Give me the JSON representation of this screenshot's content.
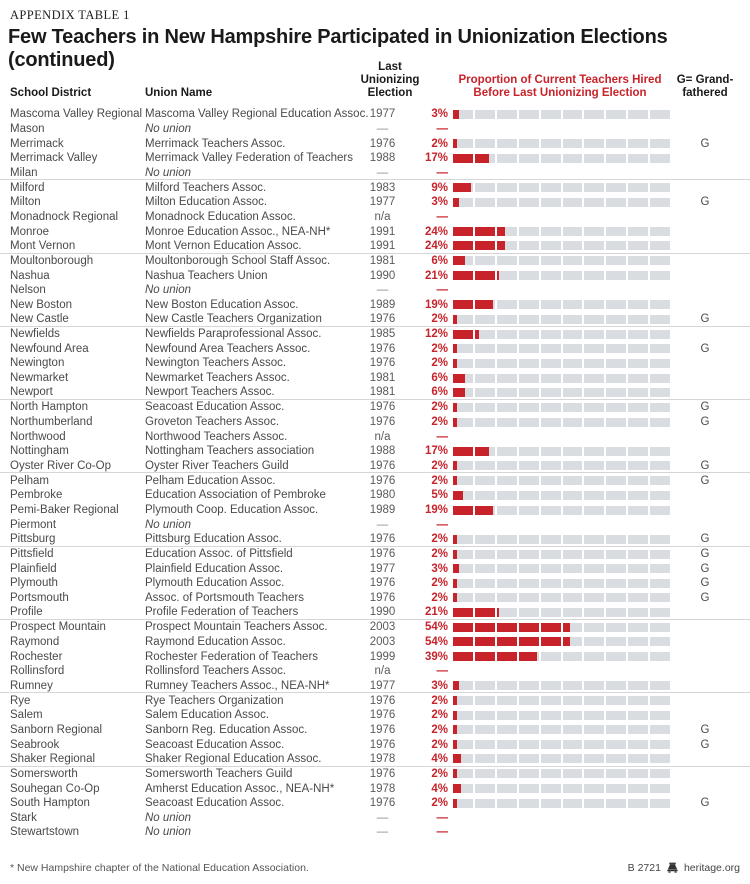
{
  "page": {
    "eyebrow": "APPENDIX TABLE 1",
    "title": "Few Teachers in New Hampshire Participated in Unionization Elections (continued)",
    "footnote": "* New Hampshire chapter of the National Education Association.",
    "footer_code": "B 2721",
    "footer_site": "heritage.org"
  },
  "columns": {
    "school_district": "School District",
    "union_name": "Union Name",
    "last_election_lines": [
      "Last",
      "Unionizing",
      "Election"
    ],
    "proportion_lines": [
      "Proportion of Current Teachers Hired",
      "Before Last Unionizing Election"
    ],
    "grandfathered_lines": [
      "G= Grand-",
      "fathered"
    ]
  },
  "colors": {
    "accent_red": "#C8232B",
    "bar_track_gray": "#D9DDE2",
    "divider_gray": "#D6D6D6",
    "body_text": "#4A4A4A"
  },
  "rows": [
    {
      "district": "Mascoma Valley Regional",
      "union": "Mascoma Valley Regional Education Assoc.",
      "no_union": false,
      "year": "1977",
      "pct": 3,
      "pct_label": "3%",
      "g": ""
    },
    {
      "district": "Mason",
      "union": "No union",
      "no_union": true,
      "year": "—",
      "pct": null,
      "pct_label": "—",
      "g": ""
    },
    {
      "district": "Merrimack",
      "union": "Merrimack Teachers Assoc.",
      "no_union": false,
      "year": "1976",
      "pct": 2,
      "pct_label": "2%",
      "g": "G"
    },
    {
      "district": "Merrimack Valley",
      "union": "Merrimack Valley Federation of Teachers",
      "no_union": false,
      "year": "1988",
      "pct": 17,
      "pct_label": "17%",
      "g": ""
    },
    {
      "district": "Milan",
      "union": "No union",
      "no_union": true,
      "year": "—",
      "pct": null,
      "pct_label": "—",
      "g": ""
    },
    {
      "district": "Milford",
      "union": "Milford Teachers Assoc.",
      "no_union": false,
      "year": "1983",
      "pct": 9,
      "pct_label": "9%",
      "g": ""
    },
    {
      "district": "Milton",
      "union": "Milton Education Assoc.",
      "no_union": false,
      "year": "1977",
      "pct": 3,
      "pct_label": "3%",
      "g": "G"
    },
    {
      "district": "Monadnock Regional",
      "union": "Monadnock Education Assoc.",
      "no_union": false,
      "year": "n/a",
      "pct": null,
      "pct_label": "—",
      "g": ""
    },
    {
      "district": "Monroe",
      "union": "Monroe Education Assoc., NEA-NH*",
      "no_union": false,
      "year": "1991",
      "pct": 24,
      "pct_label": "24%",
      "g": ""
    },
    {
      "district": "Mont Vernon",
      "union": "Mont Vernon Education Assoc.",
      "no_union": false,
      "year": "1991",
      "pct": 24,
      "pct_label": "24%",
      "g": ""
    },
    {
      "district": "Moultonborough",
      "union": "Moultonborough School Staff Assoc.",
      "no_union": false,
      "year": "1981",
      "pct": 6,
      "pct_label": "6%",
      "g": ""
    },
    {
      "district": "Nashua",
      "union": "Nashua Teachers Union",
      "no_union": false,
      "year": "1990",
      "pct": 21,
      "pct_label": "21%",
      "g": ""
    },
    {
      "district": "Nelson",
      "union": "No union",
      "no_union": true,
      "year": "—",
      "pct": null,
      "pct_label": "—",
      "g": ""
    },
    {
      "district": "New Boston",
      "union": "New Boston Education Assoc.",
      "no_union": false,
      "year": "1989",
      "pct": 19,
      "pct_label": "19%",
      "g": ""
    },
    {
      "district": "New Castle",
      "union": "New Castle Teachers Organization",
      "no_union": false,
      "year": "1976",
      "pct": 2,
      "pct_label": "2%",
      "g": "G"
    },
    {
      "district": "Newfields",
      "union": "Newfields Paraprofessional Assoc.",
      "no_union": false,
      "year": "1985",
      "pct": 12,
      "pct_label": "12%",
      "g": ""
    },
    {
      "district": "Newfound Area",
      "union": "Newfound Area Teachers Assoc.",
      "no_union": false,
      "year": "1976",
      "pct": 2,
      "pct_label": "2%",
      "g": "G"
    },
    {
      "district": "Newington",
      "union": "Newington Teachers Assoc.",
      "no_union": false,
      "year": "1976",
      "pct": 2,
      "pct_label": "2%",
      "g": ""
    },
    {
      "district": "Newmarket",
      "union": "Newmarket Teachers Assoc.",
      "no_union": false,
      "year": "1981",
      "pct": 6,
      "pct_label": "6%",
      "g": ""
    },
    {
      "district": "Newport",
      "union": "Newport Teachers Assoc.",
      "no_union": false,
      "year": "1981",
      "pct": 6,
      "pct_label": "6%",
      "g": ""
    },
    {
      "district": "North Hampton",
      "union": "Seacoast Education Assoc.",
      "no_union": false,
      "year": "1976",
      "pct": 2,
      "pct_label": "2%",
      "g": "G"
    },
    {
      "district": "Northumberland",
      "union": "Groveton Teachers Assoc.",
      "no_union": false,
      "year": "1976",
      "pct": 2,
      "pct_label": "2%",
      "g": "G"
    },
    {
      "district": "Northwood",
      "union": "Northwood Teachers Assoc.",
      "no_union": false,
      "year": "n/a",
      "pct": null,
      "pct_label": "—",
      "g": ""
    },
    {
      "district": "Nottingham",
      "union": "Nottingham Teachers association",
      "no_union": false,
      "year": "1988",
      "pct": 17,
      "pct_label": "17%",
      "g": ""
    },
    {
      "district": "Oyster River Co-Op",
      "union": "Oyster River Teachers Guild",
      "no_union": false,
      "year": "1976",
      "pct": 2,
      "pct_label": "2%",
      "g": "G"
    },
    {
      "district": "Pelham",
      "union": "Pelham Education Assoc.",
      "no_union": false,
      "year": "1976",
      "pct": 2,
      "pct_label": "2%",
      "g": "G"
    },
    {
      "district": "Pembroke",
      "union": "Education Association of Pembroke",
      "no_union": false,
      "year": "1980",
      "pct": 5,
      "pct_label": "5%",
      "g": ""
    },
    {
      "district": "Pemi-Baker Regional",
      "union": "Plymouth Coop. Education Assoc.",
      "no_union": false,
      "year": "1989",
      "pct": 19,
      "pct_label": "19%",
      "g": ""
    },
    {
      "district": "Piermont",
      "union": "No union",
      "no_union": true,
      "year": "—",
      "pct": null,
      "pct_label": "—",
      "g": ""
    },
    {
      "district": "Pittsburg",
      "union": "Pittsburg Education Assoc.",
      "no_union": false,
      "year": "1976",
      "pct": 2,
      "pct_label": "2%",
      "g": "G"
    },
    {
      "district": "Pittsfield",
      "union": "Education Assoc. of Pittsfield",
      "no_union": false,
      "year": "1976",
      "pct": 2,
      "pct_label": "2%",
      "g": "G"
    },
    {
      "district": "Plainfield",
      "union": "Plainfield Education Assoc.",
      "no_union": false,
      "year": "1977",
      "pct": 3,
      "pct_label": "3%",
      "g": "G"
    },
    {
      "district": "Plymouth",
      "union": "Plymouth Education Assoc.",
      "no_union": false,
      "year": "1976",
      "pct": 2,
      "pct_label": "2%",
      "g": "G"
    },
    {
      "district": "Portsmouth",
      "union": "Assoc. of Portsmouth Teachers",
      "no_union": false,
      "year": "1976",
      "pct": 2,
      "pct_label": "2%",
      "g": "G"
    },
    {
      "district": "Profile",
      "union": "Profile Federation of Teachers",
      "no_union": false,
      "year": "1990",
      "pct": 21,
      "pct_label": "21%",
      "g": ""
    },
    {
      "district": "Prospect Mountain",
      "union": "Prospect Mountain Teachers Assoc.",
      "no_union": false,
      "year": "2003",
      "pct": 54,
      "pct_label": "54%",
      "g": ""
    },
    {
      "district": "Raymond",
      "union": "Raymond Education Assoc.",
      "no_union": false,
      "year": "2003",
      "pct": 54,
      "pct_label": "54%",
      "g": ""
    },
    {
      "district": "Rochester",
      "union": "Rochester Federation of Teachers",
      "no_union": false,
      "year": "1999",
      "pct": 39,
      "pct_label": "39%",
      "g": ""
    },
    {
      "district": "Rollinsford",
      "union": "Rollinsford Teachers Assoc.",
      "no_union": false,
      "year": "n/a",
      "pct": null,
      "pct_label": "—",
      "g": ""
    },
    {
      "district": "Rumney",
      "union": "Rumney Teachers Assoc., NEA-NH*",
      "no_union": false,
      "year": "1977",
      "pct": 3,
      "pct_label": "3%",
      "g": ""
    },
    {
      "district": "Rye",
      "union": "Rye Teachers Organization",
      "no_union": false,
      "year": "1976",
      "pct": 2,
      "pct_label": "2%",
      "g": ""
    },
    {
      "district": "Salem",
      "union": "Salem Education Assoc.",
      "no_union": false,
      "year": "1976",
      "pct": 2,
      "pct_label": "2%",
      "g": ""
    },
    {
      "district": "Sanborn Regional",
      "union": "Sanborn Reg. Education Assoc.",
      "no_union": false,
      "year": "1976",
      "pct": 2,
      "pct_label": "2%",
      "g": "G"
    },
    {
      "district": "Seabrook",
      "union": "Seacoast Education Assoc.",
      "no_union": false,
      "year": "1976",
      "pct": 2,
      "pct_label": "2%",
      "g": "G"
    },
    {
      "district": "Shaker Regional",
      "union": "Shaker Regional Education Assoc.",
      "no_union": false,
      "year": "1978",
      "pct": 4,
      "pct_label": "4%",
      "g": ""
    },
    {
      "district": "Somersworth",
      "union": "Somersworth Teachers Guild",
      "no_union": false,
      "year": "1976",
      "pct": 2,
      "pct_label": "2%",
      "g": ""
    },
    {
      "district": "Souhegan Co-Op",
      "union": "Amherst Education Assoc., NEA-NH*",
      "no_union": false,
      "year": "1978",
      "pct": 4,
      "pct_label": "4%",
      "g": ""
    },
    {
      "district": "South Hampton",
      "union": "Seacoast Education Assoc.",
      "no_union": false,
      "year": "1976",
      "pct": 2,
      "pct_label": "2%",
      "g": "G"
    },
    {
      "district": "Stark",
      "union": "No union",
      "no_union": true,
      "year": "—",
      "pct": null,
      "pct_label": "—",
      "g": ""
    },
    {
      "district": "Stewartstown",
      "union": "No union",
      "no_union": true,
      "year": "—",
      "pct": null,
      "pct_label": "—",
      "g": ""
    }
  ],
  "chart_data": {
    "type": "bar",
    "title": "Few Teachers in New Hampshire Participated in Unionization Elections (continued)",
    "xlabel": "Proportion of Current Teachers Hired Before Last Unionizing Election",
    "unit": "percent",
    "xlim": [
      0,
      100
    ],
    "bar_segments": 10,
    "categories": [
      "Mascoma Valley Regional",
      "Mason",
      "Merrimack",
      "Merrimack Valley",
      "Milan",
      "Milford",
      "Milton",
      "Monadnock Regional",
      "Monroe",
      "Mont Vernon",
      "Moultonborough",
      "Nashua",
      "Nelson",
      "New Boston",
      "New Castle",
      "Newfields",
      "Newfound Area",
      "Newington",
      "Newmarket",
      "Newport",
      "North Hampton",
      "Northumberland",
      "Northwood",
      "Nottingham",
      "Oyster River Co-Op",
      "Pelham",
      "Pembroke",
      "Pemi-Baker Regional",
      "Piermont",
      "Pittsburg",
      "Pittsfield",
      "Plainfield",
      "Plymouth",
      "Portsmouth",
      "Profile",
      "Prospect Mountain",
      "Raymond",
      "Rochester",
      "Rollinsford",
      "Rumney",
      "Rye",
      "Salem",
      "Sanborn Regional",
      "Seabrook",
      "Shaker Regional",
      "Somersworth",
      "Souhegan Co-Op",
      "South Hampton",
      "Stark",
      "Stewartstown"
    ],
    "values": [
      3,
      null,
      2,
      17,
      null,
      9,
      3,
      null,
      24,
      24,
      6,
      21,
      null,
      19,
      2,
      12,
      2,
      2,
      6,
      6,
      2,
      2,
      null,
      17,
      2,
      2,
      5,
      19,
      null,
      2,
      2,
      3,
      2,
      2,
      21,
      54,
      54,
      39,
      null,
      3,
      2,
      2,
      2,
      2,
      4,
      2,
      4,
      2,
      null,
      null
    ]
  }
}
